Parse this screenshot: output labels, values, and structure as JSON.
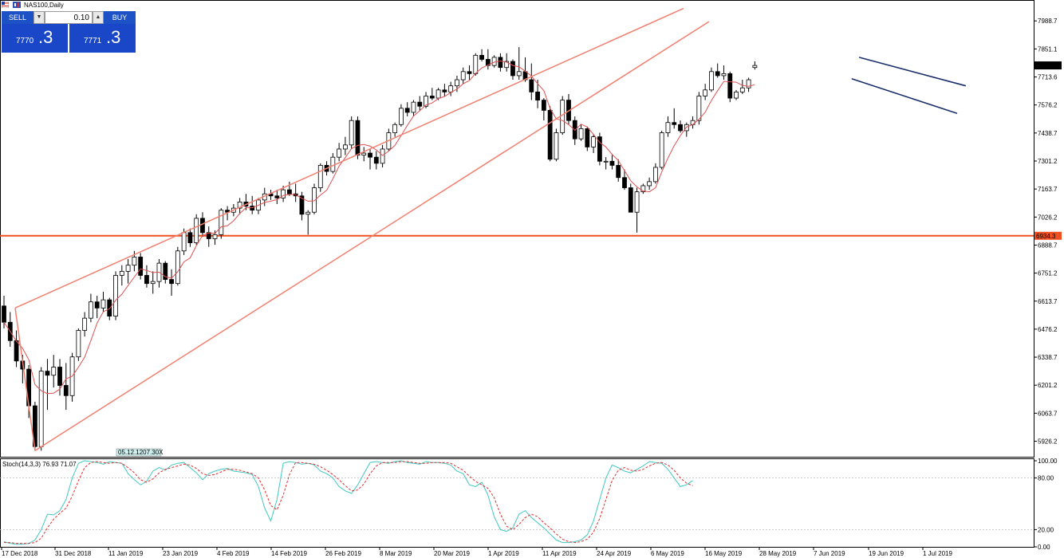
{
  "window": {
    "title": "NAS100,Daily"
  },
  "trade_panel": {
    "sell_label": "SELL",
    "buy_label": "BUY",
    "lot_value": "0.10",
    "sell_price_small": "7770",
    "sell_price_big": ".3",
    "buy_price_small": "7771",
    "buy_price_big": ".3",
    "down_arrow": "▼",
    "up_arrow": "▲"
  },
  "price_axis": {
    "labels": [
      "7988.7",
      "7851.1",
      "7713.6",
      "7576.2",
      "7438.7",
      "7301.2",
      "7163.7",
      "7026.2",
      "6888.7",
      "6751.2",
      "6613.7",
      "6476.2",
      "6338.7",
      "6201.2",
      "6063.7",
      "5926.2"
    ],
    "current_price": "7770.3",
    "level_price": "6934.3"
  },
  "time_axis": {
    "labels": [
      "17 Dec 2018",
      "31 Dec 2018",
      "11 Jan 2019",
      "23 Jan 2019",
      "4 Feb 2019",
      "14 Feb 2019",
      "26 Feb 2019",
      "8 Mar 2019",
      "20 Mar 2019",
      "1 Apr 2019",
      "11 Apr 2019",
      "24 Apr 2019",
      "6 May 2019",
      "16 May 2019",
      "28 May 2019",
      "7 Jun 2019",
      "19 Jun 2019",
      "1 Jul 2019"
    ]
  },
  "stoch_panel": {
    "title": "Stoch(14,3,3) 76.93 71.07",
    "labels": [
      "100.00",
      "80.00",
      "20.00",
      "0.00"
    ]
  },
  "tooltip": "05.12.1207.30X",
  "colors": {
    "trendline": "#f08070",
    "ma": "#e05050",
    "level": "#f05020",
    "channel": "#1a2f6a",
    "stoch_main": "#40c8c0",
    "stoch_signal": "#e03030"
  },
  "chart_data": {
    "type": "candlestick",
    "symbol": "NAS100",
    "timeframe": "Daily",
    "ylim": [
      5850,
      8060
    ],
    "x_start": "17 Dec 2018",
    "candles": [
      [
        6590,
        6640,
        6480,
        6510
      ],
      [
        6510,
        6560,
        6390,
        6420
      ],
      [
        6420,
        6470,
        6290,
        6320
      ],
      [
        6320,
        6350,
        6210,
        6280
      ],
      [
        6280,
        6300,
        6040,
        6100
      ],
      [
        6100,
        6120,
        5880,
        5900
      ],
      [
        5900,
        6290,
        5880,
        6270
      ],
      [
        6270,
        6330,
        6080,
        6250
      ],
      [
        6250,
        6350,
        6190,
        6290
      ],
      [
        6290,
        6330,
        6150,
        6200
      ],
      [
        6200,
        6310,
        6080,
        6150
      ],
      [
        6150,
        6360,
        6120,
        6340
      ],
      [
        6340,
        6480,
        6320,
        6470
      ],
      [
        6470,
        6560,
        6440,
        6530
      ],
      [
        6530,
        6650,
        6510,
        6610
      ],
      [
        6610,
        6640,
        6530,
        6580
      ],
      [
        6580,
        6660,
        6560,
        6620
      ],
      [
        6620,
        6630,
        6520,
        6540
      ],
      [
        6540,
        6760,
        6520,
        6740
      ],
      [
        6740,
        6790,
        6690,
        6760
      ],
      [
        6760,
        6820,
        6700,
        6790
      ],
      [
        6790,
        6860,
        6760,
        6830
      ],
      [
        6830,
        6850,
        6720,
        6740
      ],
      [
        6740,
        6790,
        6680,
        6700
      ],
      [
        6700,
        6760,
        6650,
        6710
      ],
      [
        6710,
        6820,
        6680,
        6800
      ],
      [
        6800,
        6810,
        6700,
        6720
      ],
      [
        6720,
        6770,
        6640,
        6700
      ],
      [
        6700,
        6880,
        6690,
        6860
      ],
      [
        6860,
        6970,
        6840,
        6950
      ],
      [
        6950,
        6970,
        6880,
        6900
      ],
      [
        6900,
        7040,
        6890,
        7020
      ],
      [
        7020,
        7050,
        6930,
        6950
      ],
      [
        6950,
        6980,
        6880,
        6920
      ],
      [
        6920,
        6960,
        6890,
        6940
      ],
      [
        6940,
        7070,
        6920,
        7060
      ],
      [
        7060,
        7080,
        7010,
        7050
      ],
      [
        7050,
        7090,
        7030,
        7070
      ],
      [
        7070,
        7120,
        7040,
        7100
      ],
      [
        7100,
        7140,
        7060,
        7080
      ],
      [
        7080,
        7130,
        7040,
        7060
      ],
      [
        7060,
        7120,
        7040,
        7110
      ],
      [
        7110,
        7170,
        7080,
        7140
      ],
      [
        7140,
        7160,
        7110,
        7130
      ],
      [
        7130,
        7160,
        7090,
        7120
      ],
      [
        7120,
        7180,
        7100,
        7160
      ],
      [
        7160,
        7200,
        7130,
        7140
      ],
      [
        7140,
        7190,
        7100,
        7130
      ],
      [
        7130,
        7150,
        7010,
        7040
      ],
      [
        7040,
        7060,
        6940,
        7050
      ],
      [
        7050,
        7190,
        7040,
        7170
      ],
      [
        7170,
        7290,
        7150,
        7280
      ],
      [
        7280,
        7300,
        7230,
        7250
      ],
      [
        7250,
        7340,
        7240,
        7320
      ],
      [
        7320,
        7390,
        7300,
        7360
      ],
      [
        7360,
        7420,
        7330,
        7380
      ],
      [
        7380,
        7520,
        7360,
        7500
      ],
      [
        7500,
        7520,
        7310,
        7330
      ],
      [
        7330,
        7370,
        7300,
        7340
      ],
      [
        7340,
        7360,
        7260,
        7320
      ],
      [
        7320,
        7350,
        7260,
        7290
      ],
      [
        7290,
        7380,
        7270,
        7360
      ],
      [
        7360,
        7460,
        7350,
        7440
      ],
      [
        7440,
        7490,
        7420,
        7480
      ],
      [
        7480,
        7580,
        7470,
        7560
      ],
      [
        7560,
        7590,
        7520,
        7540
      ],
      [
        7540,
        7600,
        7520,
        7590
      ],
      [
        7590,
        7620,
        7550,
        7570
      ],
      [
        7570,
        7640,
        7560,
        7620
      ],
      [
        7620,
        7660,
        7600,
        7610
      ],
      [
        7610,
        7660,
        7600,
        7650
      ],
      [
        7650,
        7680,
        7620,
        7640
      ],
      [
        7640,
        7690,
        7620,
        7670
      ],
      [
        7670,
        7720,
        7640,
        7700
      ],
      [
        7700,
        7760,
        7680,
        7740
      ],
      [
        7740,
        7770,
        7700,
        7730
      ],
      [
        7730,
        7830,
        7720,
        7820
      ],
      [
        7820,
        7850,
        7790,
        7800
      ],
      [
        7800,
        7850,
        7750,
        7770
      ],
      [
        7770,
        7820,
        7760,
        7810
      ],
      [
        7810,
        7830,
        7740,
        7760
      ],
      [
        7760,
        7830,
        7740,
        7790
      ],
      [
        7790,
        7800,
        7700,
        7720
      ],
      [
        7720,
        7860,
        7700,
        7740
      ],
      [
        7740,
        7810,
        7690,
        7700
      ],
      [
        7700,
        7780,
        7600,
        7640
      ],
      [
        7640,
        7700,
        7560,
        7600
      ],
      [
        7600,
        7610,
        7500,
        7550
      ],
      [
        7550,
        7570,
        7300,
        7310
      ],
      [
        7310,
        7460,
        7300,
        7440
      ],
      [
        7440,
        7620,
        7430,
        7600
      ],
      [
        7600,
        7630,
        7480,
        7500
      ],
      [
        7500,
        7520,
        7380,
        7410
      ],
      [
        7410,
        7480,
        7400,
        7460
      ],
      [
        7460,
        7470,
        7350,
        7370
      ],
      [
        7370,
        7430,
        7340,
        7420
      ],
      [
        7420,
        7440,
        7280,
        7300
      ],
      [
        7300,
        7320,
        7260,
        7300
      ],
      [
        7300,
        7330,
        7260,
        7280
      ],
      [
        7280,
        7310,
        7200,
        7220
      ],
      [
        7220,
        7260,
        7160,
        7170
      ],
      [
        7170,
        7190,
        7050,
        7050
      ],
      [
        7050,
        7170,
        6950,
        7150
      ],
      [
        7150,
        7190,
        7140,
        7180
      ],
      [
        7180,
        7220,
        7160,
        7200
      ],
      [
        7200,
        7290,
        7190,
        7270
      ],
      [
        7270,
        7450,
        7260,
        7440
      ],
      [
        7440,
        7520,
        7420,
        7490
      ],
      [
        7490,
        7560,
        7460,
        7480
      ],
      [
        7480,
        7500,
        7440,
        7450
      ],
      [
        7450,
        7490,
        7420,
        7480
      ],
      [
        7480,
        7520,
        7460,
        7500
      ],
      [
        7500,
        7640,
        7480,
        7620
      ],
      [
        7620,
        7680,
        7600,
        7650
      ],
      [
        7650,
        7760,
        7640,
        7740
      ],
      [
        7740,
        7780,
        7710,
        7720
      ],
      [
        7720,
        7770,
        7700,
        7730
      ],
      [
        7730,
        7740,
        7590,
        7610
      ],
      [
        7610,
        7650,
        7600,
        7640
      ],
      [
        7640,
        7700,
        7630,
        7660
      ],
      [
        7660,
        7710,
        7640,
        7700
      ],
      [
        7760,
        7790,
        7750,
        7770
      ]
    ],
    "horizontal_level": 6934.3,
    "stochastic": {
      "k_period": 14,
      "d_period": 3,
      "slowing": 3,
      "last_main": 76.93,
      "last_signal": 71.07,
      "levels": [
        20,
        80
      ],
      "ylim": [
        0,
        100
      ],
      "main": [
        6,
        4,
        3,
        3,
        4,
        8,
        20,
        38,
        37,
        42,
        55,
        80,
        97,
        100,
        99,
        98,
        96,
        99,
        98,
        97,
        85,
        78,
        72,
        76,
        88,
        92,
        89,
        95,
        97,
        98,
        92,
        86,
        78,
        85,
        88,
        90,
        91,
        88,
        87,
        86,
        84,
        70,
        45,
        30,
        55,
        97,
        99,
        98,
        96,
        97,
        95,
        88,
        85,
        80,
        70,
        65,
        62,
        72,
        85,
        98,
        99,
        98,
        97,
        99,
        100,
        98,
        97,
        96,
        99,
        98,
        98,
        97,
        95,
        88,
        85,
        72,
        70,
        75,
        60,
        35,
        20,
        18,
        22,
        38,
        42,
        34,
        28,
        22,
        15,
        8,
        5,
        5,
        6,
        8,
        14,
        30,
        55,
        80,
        95,
        92,
        88,
        86,
        90,
        94,
        99,
        98,
        97,
        90,
        80,
        70,
        72,
        77
      ],
      "signal": [
        5,
        5,
        4,
        4,
        4,
        5,
        10,
        22,
        32,
        39,
        45,
        59,
        77,
        92,
        98,
        99,
        98,
        97,
        98,
        97,
        92,
        86,
        78,
        75,
        79,
        86,
        90,
        92,
        94,
        96,
        95,
        91,
        85,
        83,
        84,
        87,
        90,
        90,
        89,
        87,
        85,
        80,
        66,
        48,
        43,
        60,
        84,
        98,
        98,
        97,
        96,
        93,
        89,
        84,
        78,
        71,
        65,
        66,
        73,
        85,
        94,
        98,
        98,
        98,
        99,
        99,
        98,
        97,
        97,
        98,
        98,
        98,
        97,
        93,
        89,
        82,
        76,
        72,
        68,
        57,
        38,
        24,
        20,
        26,
        34,
        38,
        35,
        28,
        22,
        15,
        9,
        6,
        5,
        6,
        9,
        17,
        33,
        55,
        77,
        89,
        92,
        89,
        88,
        90,
        94,
        97,
        98,
        95,
        89,
        80,
        74,
        71
      ]
    }
  }
}
